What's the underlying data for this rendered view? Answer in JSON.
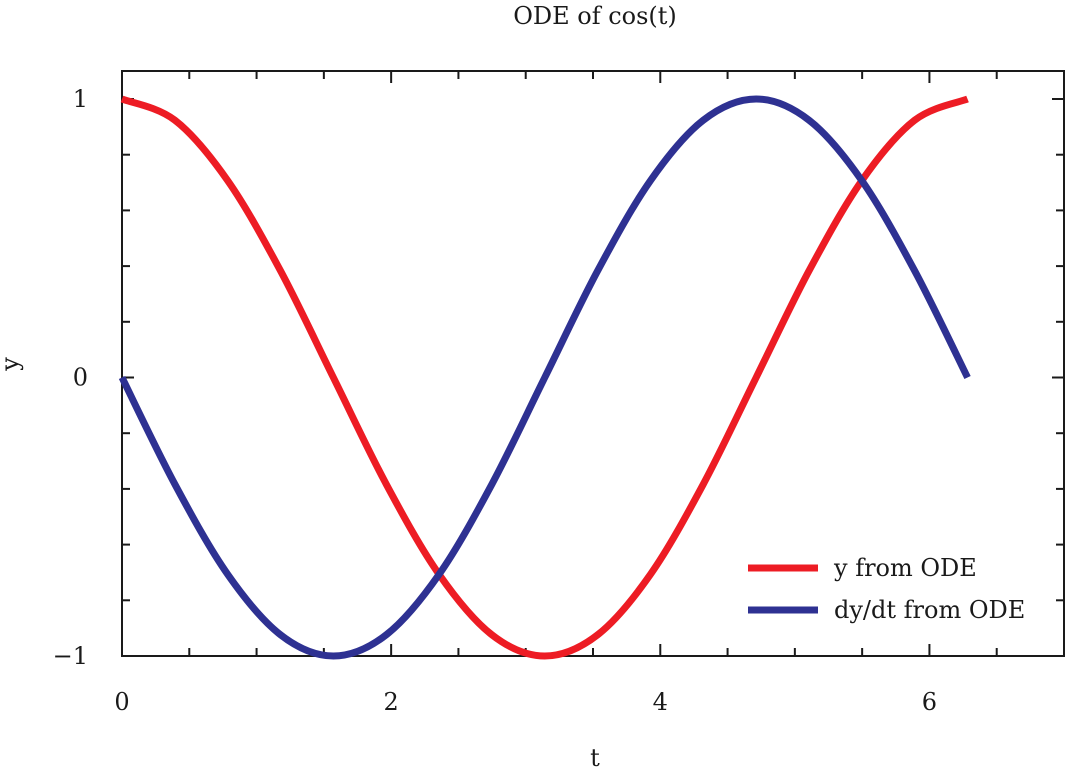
{
  "chart_data": {
    "type": "line",
    "title": "ODE of cos(t)",
    "xlabel": "t",
    "ylabel": "y",
    "xlim": [
      0,
      7
    ],
    "ylim": [
      -1,
      1
    ],
    "xticks": [
      0,
      2,
      4,
      6
    ],
    "xtick_labels": [
      "0",
      "2",
      "4",
      "6"
    ],
    "yticks": [
      -1,
      0,
      1
    ],
    "ytick_labels": [
      "−1",
      "0",
      "1"
    ],
    "grid": false,
    "legend_position": "lower-right",
    "series": [
      {
        "name": "y from ODE",
        "color": "#ed1c24",
        "x": [
          0,
          0.3927,
          0.7854,
          1.1781,
          1.5708,
          1.9635,
          2.3562,
          2.7489,
          3.1416,
          3.5343,
          3.927,
          4.3197,
          4.7124,
          5.1051,
          5.4978,
          5.8905,
          6.2832
        ],
        "y": [
          1,
          0.924,
          0.707,
          0.383,
          0,
          -0.383,
          -0.707,
          -0.924,
          -1,
          -0.924,
          -0.707,
          -0.383,
          0,
          0.383,
          0.707,
          0.924,
          1
        ]
      },
      {
        "name": "dy/dt from ODE",
        "color": "#2e3192",
        "x": [
          0,
          0.3927,
          0.7854,
          1.1781,
          1.5708,
          1.9635,
          2.3562,
          2.7489,
          3.1416,
          3.5343,
          3.927,
          4.3197,
          4.7124,
          5.1051,
          5.4978,
          5.8905,
          6.2832
        ],
        "y": [
          0,
          -0.383,
          -0.707,
          -0.924,
          -1,
          -0.924,
          -0.707,
          -0.383,
          0,
          0.383,
          0.707,
          0.924,
          1,
          0.924,
          0.707,
          0.383,
          0
        ]
      }
    ]
  }
}
